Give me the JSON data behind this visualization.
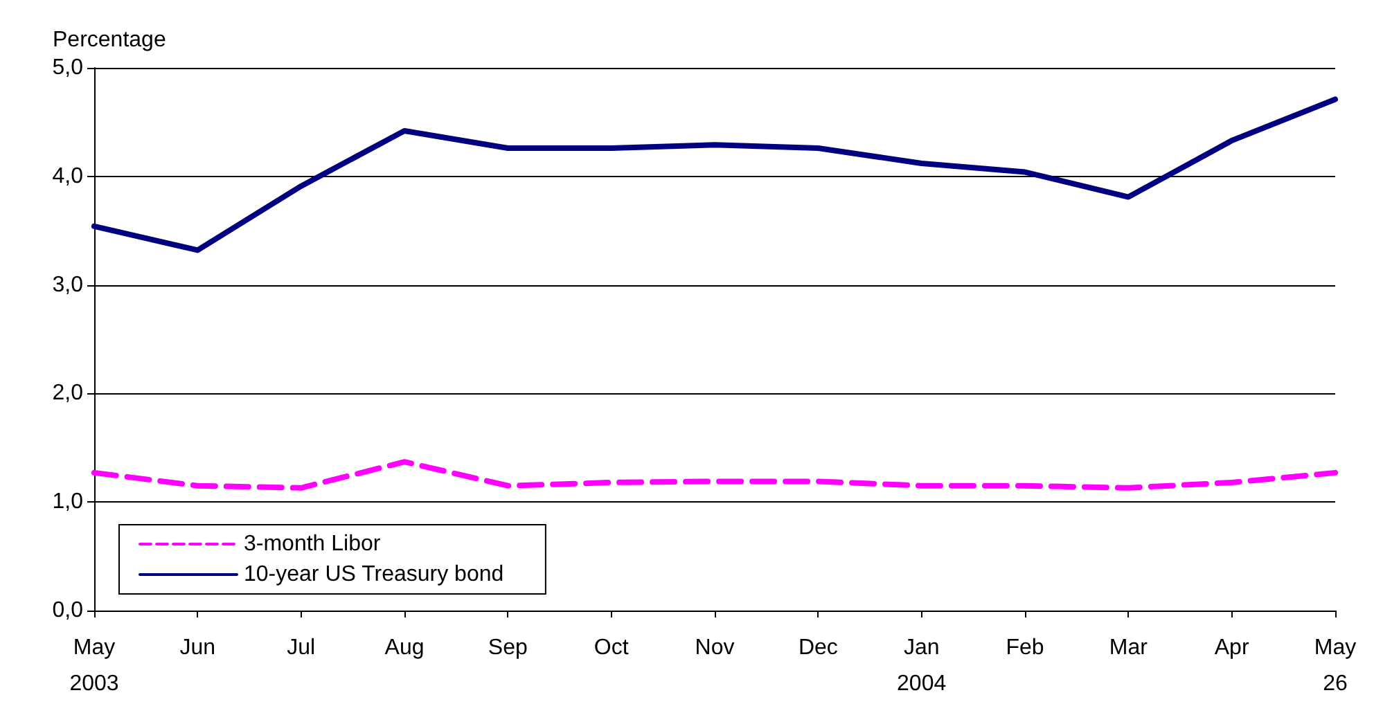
{
  "chart_data": {
    "type": "line",
    "ylabel": "Percentage",
    "categories": [
      "May\n2003",
      "Jun",
      "Jul",
      "Aug",
      "Sep",
      "Oct",
      "Nov",
      "Dec",
      "Jan\n2004",
      "Feb",
      "Mar",
      "Apr",
      "May\n26"
    ],
    "series": [
      {
        "name": "3-month Libor",
        "color": "#ff00ff",
        "line_style": "dashed",
        "values": [
          1.27,
          1.15,
          1.13,
          1.37,
          1.15,
          1.18,
          1.19,
          1.19,
          1.15,
          1.15,
          1.13,
          1.18,
          1.27
        ]
      },
      {
        "name": "10-year US Treasury bond",
        "color": "#000080",
        "line_style": "solid",
        "values": [
          3.54,
          3.32,
          3.91,
          4.42,
          4.26,
          4.26,
          4.29,
          4.26,
          4.12,
          4.04,
          3.81,
          4.33,
          4.71
        ]
      }
    ],
    "ylim": [
      0,
      5
    ],
    "yticks": [
      {
        "value": 0,
        "label": "0,0"
      },
      {
        "value": 1,
        "label": "1,0"
      },
      {
        "value": 2,
        "label": "2,0"
      },
      {
        "value": 3,
        "label": "3,0"
      },
      {
        "value": 4,
        "label": "4,0"
      },
      {
        "value": 5,
        "label": "5,0"
      }
    ],
    "grid": "y",
    "legend": "bottom left",
    "marker": "none"
  }
}
